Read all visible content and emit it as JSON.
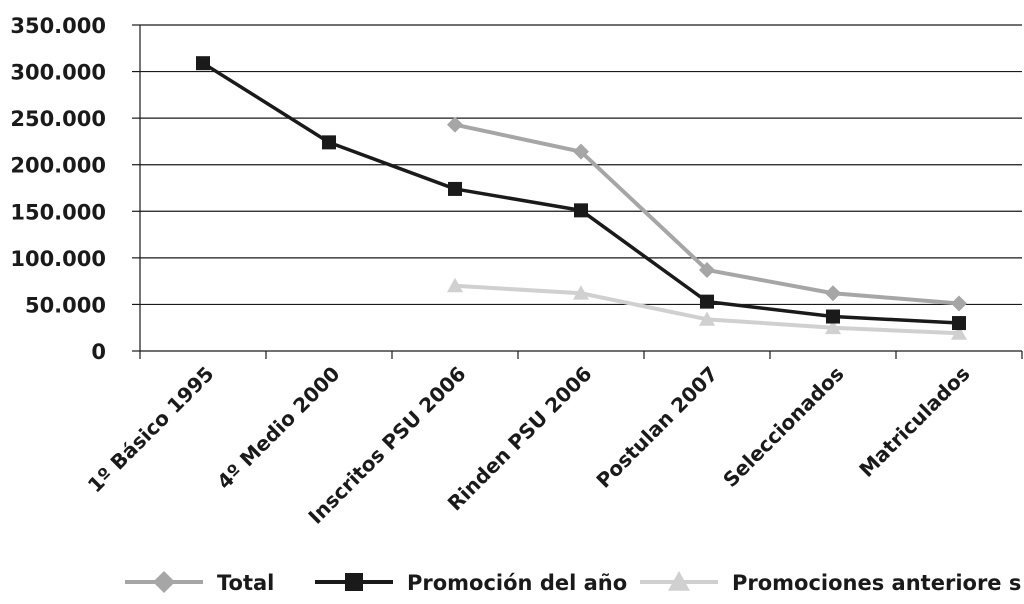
{
  "chart_data": {
    "type": "line",
    "title": "",
    "xlabel": "",
    "ylabel": "",
    "ylim": [
      0,
      350000
    ],
    "y_ticks": [
      0,
      50000,
      100000,
      150000,
      200000,
      250000,
      300000,
      350000
    ],
    "y_tick_labels": [
      "0",
      "50.000",
      "100.000",
      "150.000",
      "200.000",
      "250.000",
      "300.000",
      "350.000"
    ],
    "categories": [
      "1º Básico 1995",
      "4º Medio 2000",
      "Inscritos PSU 2006",
      "Rinden PSU 2006",
      "Postulan 2007",
      "Seleccionados",
      "Matriculados"
    ],
    "grid": "horizontal",
    "legend_position": "bottom",
    "series": [
      {
        "name": "Total",
        "color": "#a6a6a6",
        "marker": "diamond",
        "values": [
          null,
          null,
          243000,
          214000,
          87000,
          62000,
          51000
        ]
      },
      {
        "name": "Promoción del año",
        "color": "#1a1a1a",
        "marker": "square",
        "values": [
          309000,
          224000,
          174000,
          151000,
          53000,
          37000,
          30000
        ]
      },
      {
        "name": "Promociones anteriore s",
        "color": "#d0d0d0",
        "marker": "triangle",
        "values": [
          null,
          null,
          70000,
          62000,
          34000,
          25000,
          19000
        ]
      }
    ]
  }
}
